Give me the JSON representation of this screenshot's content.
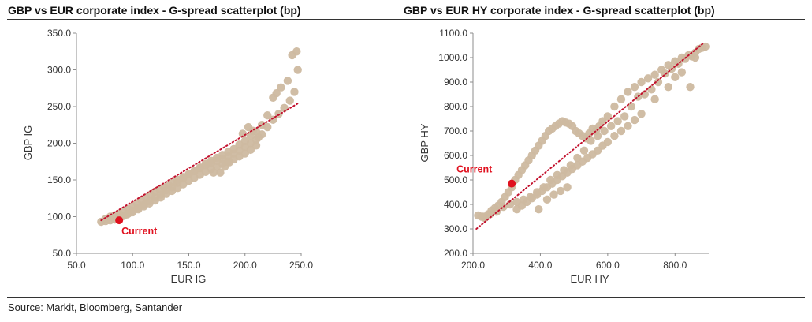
{
  "source": "Source: Markit, Bloomberg, Santander",
  "colors": {
    "points": "#cdb9a0",
    "trend": "#c3122e",
    "current": "#e0101e",
    "axis": "#8c8c8c",
    "rule": "#333333"
  },
  "chart_data": [
    {
      "type": "scatter",
      "title": "GBP vs EUR corporate index - G-spread scatterplot (bp)",
      "xlabel": "EUR IG",
      "ylabel": "GBP IG",
      "xlim": [
        50,
        250
      ],
      "ylim": [
        50,
        350
      ],
      "xticks": [
        "50.0",
        "100.0",
        "150.0",
        "200.0",
        "250.0"
      ],
      "yticks": [
        "50.0",
        "100.0",
        "150.0",
        "200.0",
        "250.0",
        "300.0",
        "350.0"
      ],
      "grid": false,
      "trendline": {
        "style": "dotted",
        "x": [
          72,
          248
        ],
        "y": [
          95,
          255
        ]
      },
      "current": {
        "label": "Current",
        "x": 88,
        "y": 95
      },
      "series": [
        {
          "x": [
            72,
            76,
            80,
            84,
            88,
            92,
            96,
            100,
            104,
            108,
            112,
            116,
            120,
            124,
            128,
            132,
            136,
            140,
            145,
            150,
            155,
            160,
            165,
            170,
            175,
            180,
            185,
            190,
            195,
            200,
            205,
            210,
            215,
            220,
            225,
            230,
            235,
            240,
            244,
            247,
            242,
            246,
            238,
            232,
            228,
            225,
            220,
            215,
            210,
            205,
            200,
            195,
            190,
            185,
            180,
            175,
            170,
            165,
            160,
            155,
            150,
            145,
            140,
            135,
            130,
            125,
            120,
            115,
            110,
            105,
            100,
            96,
            92,
            88,
            84,
            80,
            76,
            90,
            95,
            100,
            105,
            110,
            115,
            120,
            125,
            130,
            135,
            140,
            145,
            150,
            155,
            160,
            165,
            170,
            175,
            180,
            185,
            190,
            195,
            200,
            205,
            210,
            198,
            203,
            207,
            212,
            182,
            186,
            178,
            172
          ],
          "y": [
            93,
            97,
            100,
            102,
            104,
            107,
            110,
            114,
            118,
            122,
            126,
            130,
            134,
            137,
            140,
            143,
            147,
            150,
            154,
            158,
            162,
            166,
            170,
            173,
            176,
            179,
            182,
            186,
            190,
            195,
            200,
            205,
            212,
            222,
            232,
            240,
            248,
            258,
            270,
            300,
            320,
            325,
            285,
            276,
            268,
            262,
            238,
            225,
            216,
            210,
            203,
            198,
            192,
            188,
            184,
            180,
            176,
            172,
            167,
            162,
            158,
            152,
            146,
            140,
            136,
            130,
            126,
            121,
            116,
            112,
            108,
            104,
            101,
            98,
            96,
            95,
            94,
            100,
            103,
            106,
            110,
            114,
            118,
            122,
            126,
            131,
            135,
            139,
            144,
            149,
            153,
            157,
            161,
            165,
            168,
            172,
            175,
            178,
            182,
            186,
            191,
            197,
            213,
            222,
            217,
            208,
            168,
            174,
            160,
            160
          ]
        }
      ]
    },
    {
      "type": "scatter",
      "title": "GBP vs EUR HY corporate index -  G-spread scatterplot (bp)",
      "xlabel": "EUR HY",
      "ylabel": "GBP HY",
      "xlim": [
        200,
        900
      ],
      "ylim": [
        200,
        1100
      ],
      "xticks": [
        "200.0",
        "400.0",
        "600.0",
        "800.0"
      ],
      "yticks": [
        "200.0",
        "300.0",
        "400.0",
        "500.0",
        "600.0",
        "700.0",
        "800.0",
        "900.0",
        "1000.0",
        "1100.0"
      ],
      "grid": false,
      "trendline": {
        "style": "dotted",
        "x": [
          210,
          885
        ],
        "y": [
          300,
          1060
        ]
      },
      "current": {
        "label": "Current",
        "x": 315,
        "y": 485
      },
      "series": [
        {
          "x": [
            215,
            225,
            235,
            245,
            255,
            265,
            275,
            285,
            295,
            305,
            315,
            325,
            335,
            345,
            355,
            365,
            375,
            385,
            395,
            405,
            415,
            425,
            435,
            445,
            455,
            465,
            475,
            485,
            495,
            505,
            515,
            525,
            535,
            545,
            555,
            565,
            575,
            585,
            600,
            620,
            640,
            660,
            680,
            700,
            720,
            740,
            760,
            780,
            800,
            820,
            840,
            860,
            880,
            890,
            870,
            850,
            830,
            810,
            790,
            770,
            750,
            730,
            710,
            690,
            670,
            650,
            630,
            610,
            590,
            570,
            550,
            530,
            510,
            490,
            470,
            450,
            430,
            410,
            390,
            370,
            350,
            330,
            310,
            290,
            270,
            250,
            230,
            330,
            345,
            360,
            375,
            390,
            405,
            420,
            435,
            450,
            465,
            480,
            495,
            510,
            525,
            540,
            555,
            570,
            585,
            600,
            620,
            640,
            660,
            680,
            700,
            740,
            780,
            800,
            820,
            845,
            860,
            395,
            420,
            440,
            460,
            480
          ],
          "y": [
            355,
            350,
            345,
            360,
            375,
            385,
            395,
            410,
            430,
            450,
            470,
            500,
            520,
            540,
            560,
            580,
            600,
            620,
            640,
            660,
            680,
            700,
            710,
            720,
            730,
            740,
            735,
            730,
            720,
            700,
            690,
            680,
            670,
            690,
            710,
            700,
            720,
            740,
            760,
            800,
            830,
            860,
            880,
            900,
            915,
            930,
            950,
            970,
            985,
            1000,
            1010,
            1020,
            1040,
            1045,
            1035,
            1005,
            995,
            975,
            955,
            935,
            900,
            870,
            850,
            840,
            800,
            760,
            740,
            720,
            700,
            680,
            660,
            620,
            590,
            560,
            540,
            520,
            500,
            470,
            450,
            430,
            420,
            410,
            400,
            390,
            370,
            360,
            350,
            380,
            395,
            410,
            425,
            440,
            455,
            470,
            485,
            500,
            515,
            530,
            545,
            560,
            575,
            590,
            605,
            620,
            640,
            655,
            680,
            700,
            720,
            745,
            770,
            830,
            880,
            920,
            940,
            880,
            1000,
            380,
            420,
            440,
            455,
            470
          ]
        }
      ]
    }
  ]
}
